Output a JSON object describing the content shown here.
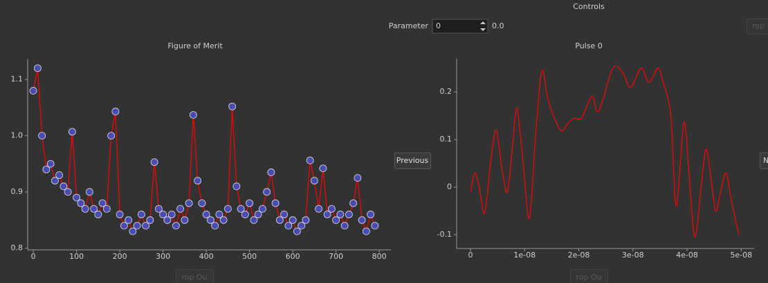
{
  "controls": {
    "title": "Controls",
    "parameter_label": "Parameter",
    "parameter_value": "0",
    "parameter_display": "0.0",
    "buttons": [
      "Previous",
      "N",
      "rop",
      "rop Ou",
      "rop Ou"
    ]
  },
  "chart_data": [
    {
      "type": "line",
      "title": "Figure of Merit",
      "markers": true,
      "color": "#ff0000",
      "marker_color": "#4b4bb4",
      "x": [
        0,
        10,
        20,
        30,
        40,
        50,
        60,
        70,
        80,
        90,
        100,
        110,
        120,
        130,
        140,
        150,
        160,
        170,
        180,
        190,
        200,
        210,
        220,
        230,
        240,
        250,
        260,
        270,
        280,
        290,
        300,
        310,
        320,
        330,
        340,
        350,
        360,
        370,
        380,
        390,
        400,
        410,
        420,
        430,
        440,
        450,
        460,
        470,
        480,
        490,
        500,
        510,
        520,
        530,
        540,
        550,
        560,
        570,
        580,
        590,
        600,
        610,
        620,
        630,
        640,
        650,
        660,
        670,
        680,
        690,
        700,
        710,
        720,
        730,
        740,
        750,
        760,
        770,
        780,
        790
      ],
      "values": [
        1.08,
        1.12,
        1.0,
        0.94,
        0.95,
        0.92,
        0.93,
        0.91,
        0.9,
        1.007,
        0.89,
        0.88,
        0.87,
        0.9,
        0.87,
        0.86,
        0.88,
        0.87,
        1.0,
        1.043,
        0.86,
        0.84,
        0.85,
        0.83,
        0.84,
        0.86,
        0.84,
        0.85,
        0.953,
        0.87,
        0.86,
        0.85,
        0.86,
        0.84,
        0.87,
        0.85,
        0.88,
        1.037,
        0.92,
        0.88,
        0.86,
        0.85,
        0.84,
        0.86,
        0.85,
        0.87,
        1.052,
        0.91,
        0.87,
        0.86,
        0.88,
        0.85,
        0.86,
        0.87,
        0.9,
        0.935,
        0.88,
        0.85,
        0.86,
        0.84,
        0.85,
        0.83,
        0.84,
        0.85,
        0.956,
        0.92,
        0.87,
        0.942,
        0.86,
        0.87,
        0.85,
        0.86,
        0.84,
        0.86,
        0.88,
        0.925,
        0.85,
        0.83,
        0.86,
        0.84
      ],
      "xlim": [
        -13,
        827
      ],
      "ylim": [
        0.797,
        1.137
      ],
      "xticks": [
        0,
        100,
        200,
        300,
        400,
        500,
        600,
        700,
        800
      ],
      "yticks": [
        0.8,
        0.9,
        {
          "value": 1,
          "label": "1.0"
        },
        1.1
      ]
    },
    {
      "type": "line",
      "title": "Pulse 0",
      "smooth": true,
      "color": "#ff0000",
      "x": [
        0,
        8e-10,
        1.6e-09,
        2.6e-09,
        3.6e-09,
        4.7e-09,
        5.8e-09,
        6.8e-09,
        7.8e-09,
        8.6e-09,
        9.8e-09,
        1.09e-08,
        1.21e-08,
        1.32e-08,
        1.44e-08,
        1.66e-08,
        1.8e-08,
        1.92e-08,
        2.05e-08,
        2.24e-08,
        2.37e-08,
        2.63e-08,
        2.81e-08,
        2.96e-08,
        3.15e-08,
        3.3e-08,
        3.46e-08,
        3.56e-08,
        3.7e-08,
        3.8e-08,
        3.94e-08,
        4.03e-08,
        4.14e-08,
        4.26e-08,
        4.35e-08,
        4.44e-08,
        4.53e-08,
        4.62e-08,
        4.72e-08,
        4.82e-08,
        4.96e-08
      ],
      "values": [
        -0.01,
        0.03,
        0.0,
        -0.055,
        0.04,
        0.12,
        0.04,
        -0.01,
        0.09,
        0.165,
        0.04,
        -0.065,
        0.12,
        0.245,
        0.18,
        0.12,
        0.135,
        0.145,
        0.145,
        0.19,
        0.16,
        0.25,
        0.24,
        0.21,
        0.25,
        0.22,
        0.25,
        0.22,
        0.15,
        -0.04,
        0.135,
        0.04,
        -0.105,
        0.0,
        0.08,
        0.02,
        -0.05,
        -0.01,
        0.03,
        -0.03,
        -0.1
      ],
      "xlim": [
        -2.56e-09,
        5.24e-08
      ],
      "ylim": [
        -0.129,
        0.27
      ],
      "xticks": [
        0,
        {
          "value": 1e-08,
          "label": "1e-08"
        },
        {
          "value": 2e-08,
          "label": "2e-08"
        },
        {
          "value": 3e-08,
          "label": "3e-08"
        },
        {
          "value": 4e-08,
          "label": "4e-08"
        },
        {
          "value": 5e-08,
          "label": "5e-08"
        }
      ],
      "yticks": [
        -0.1,
        0,
        0.1,
        0.2
      ]
    }
  ]
}
